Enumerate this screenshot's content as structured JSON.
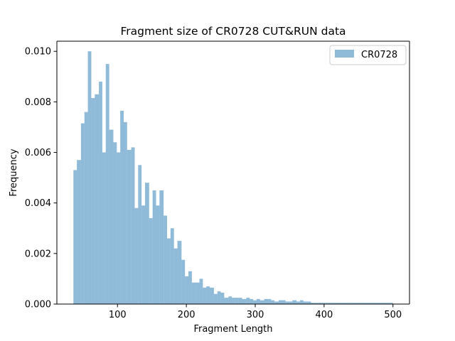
{
  "chart_data": {
    "type": "bar",
    "subtype": "histogram",
    "title": "Fragment size of CR0728 CUT&RUN data",
    "xlabel": "Fragment Length",
    "ylabel": "Frequency",
    "xlim": [
      12,
      524
    ],
    "ylim": [
      0,
      0.0104
    ],
    "xticks": [
      100,
      200,
      300,
      400,
      500
    ],
    "xtick_labels": [
      "100",
      "200",
      "300",
      "400",
      "500"
    ],
    "yticks": [
      0.0,
      0.002,
      0.004,
      0.006,
      0.008,
      0.01
    ],
    "ytick_labels": [
      "0.000",
      "0.002",
      "0.004",
      "0.006",
      "0.008",
      "0.010"
    ],
    "grid": false,
    "legend_position": "top-right",
    "colors": {
      "bar": "#1f77b4",
      "bar_alpha": 0.5,
      "axis": "#000000"
    },
    "series": [
      {
        "name": "CR0728",
        "bins": [
          [
            36,
            41
          ],
          [
            41,
            47
          ],
          [
            47,
            52
          ],
          [
            52,
            57
          ],
          [
            57,
            62
          ],
          [
            62,
            67
          ],
          [
            67,
            73
          ],
          [
            73,
            78
          ],
          [
            78,
            83
          ],
          [
            83,
            88
          ],
          [
            88,
            94
          ],
          [
            94,
            99
          ],
          [
            99,
            104
          ],
          [
            104,
            109
          ],
          [
            109,
            114
          ],
          [
            114,
            120
          ],
          [
            120,
            125
          ],
          [
            125,
            130
          ],
          [
            130,
            135
          ],
          [
            135,
            140
          ],
          [
            140,
            146
          ],
          [
            146,
            151
          ],
          [
            151,
            156
          ],
          [
            156,
            161
          ],
          [
            161,
            167
          ],
          [
            167,
            172
          ],
          [
            172,
            177
          ],
          [
            177,
            182
          ],
          [
            182,
            187
          ],
          [
            187,
            193
          ],
          [
            193,
            198
          ],
          [
            198,
            203
          ],
          [
            203,
            208
          ],
          [
            208,
            214
          ],
          [
            214,
            219
          ],
          [
            219,
            224
          ],
          [
            224,
            229
          ],
          [
            229,
            234
          ],
          [
            234,
            240
          ],
          [
            240,
            245
          ],
          [
            245,
            250
          ],
          [
            250,
            255
          ],
          [
            255,
            261
          ],
          [
            261,
            266
          ],
          [
            266,
            271
          ],
          [
            271,
            276
          ],
          [
            276,
            281
          ],
          [
            281,
            287
          ],
          [
            287,
            292
          ],
          [
            292,
            297
          ],
          [
            297,
            302
          ],
          [
            302,
            307
          ],
          [
            307,
            313
          ],
          [
            313,
            318
          ],
          [
            318,
            323
          ],
          [
            323,
            328
          ],
          [
            328,
            334
          ],
          [
            334,
            339
          ],
          [
            339,
            344
          ],
          [
            344,
            349
          ],
          [
            349,
            354
          ],
          [
            354,
            360
          ],
          [
            360,
            365
          ],
          [
            365,
            370
          ],
          [
            370,
            375
          ],
          [
            375,
            381
          ],
          [
            381,
            386
          ],
          [
            386,
            391
          ],
          [
            391,
            396
          ],
          [
            396,
            401
          ],
          [
            401,
            407
          ],
          [
            407,
            412
          ],
          [
            412,
            417
          ],
          [
            417,
            422
          ],
          [
            422,
            427
          ],
          [
            427,
            433
          ],
          [
            433,
            438
          ],
          [
            438,
            443
          ],
          [
            443,
            448
          ],
          [
            448,
            454
          ],
          [
            454,
            459
          ],
          [
            459,
            464
          ],
          [
            464,
            469
          ],
          [
            469,
            474
          ],
          [
            474,
            480
          ],
          [
            480,
            485
          ],
          [
            485,
            490
          ],
          [
            490,
            495
          ],
          [
            495,
            500
          ]
        ],
        "values": [
          0.0053,
          0.0057,
          0.00715,
          0.0076,
          0.01,
          0.00815,
          0.0083,
          0.0088,
          0.006,
          0.0095,
          0.0069,
          0.0064,
          0.006,
          0.00765,
          0.0072,
          0.0061,
          0.0062,
          0.0038,
          0.0055,
          0.0039,
          0.0048,
          0.0034,
          0.0045,
          0.0039,
          0.0045,
          0.0035,
          0.0026,
          0.003,
          0.0022,
          0.0025,
          0.00175,
          0.0011,
          0.0013,
          0.00085,
          0.00085,
          0.001,
          0.00065,
          0.0007,
          0.00065,
          0.0004,
          0.0005,
          0.00045,
          0.00025,
          0.0003,
          0.00025,
          0.00025,
          0.00025,
          0.0002,
          0.00025,
          0.0002,
          0.00015,
          0.0002,
          0.00015,
          0.0002,
          0.0002,
          0.00015,
          0.0001,
          0.00015,
          0.00015,
          0.0001,
          0.0001,
          0.00015,
          0.0001,
          0.00015,
          0.0001,
          0.0001,
          5e-05,
          5e-05,
          5e-05,
          5e-05,
          5e-05,
          5e-05,
          5e-05,
          5e-05,
          5e-05,
          5e-05,
          5e-05,
          5e-05,
          5e-05,
          5e-05,
          5e-05,
          5e-05,
          5e-05,
          5e-05,
          5e-05,
          5e-05,
          5e-05,
          5e-05,
          5e-05
        ]
      }
    ]
  }
}
